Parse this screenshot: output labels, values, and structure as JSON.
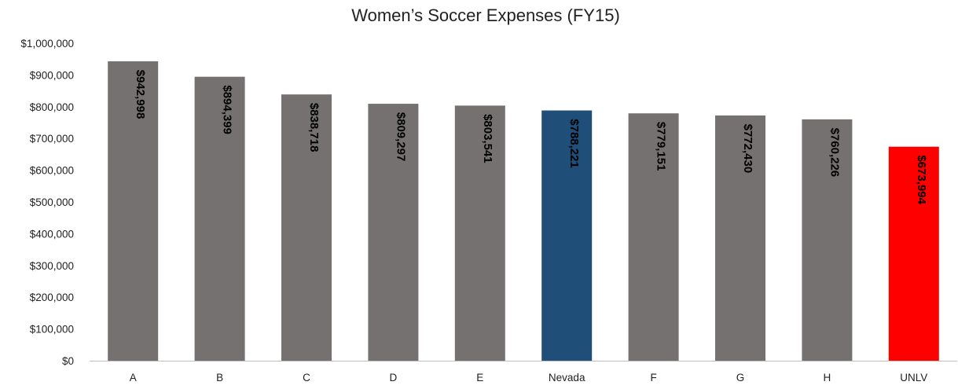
{
  "chart_data": {
    "type": "bar",
    "title": "Women’s Soccer Expenses (FY15)",
    "xlabel": "",
    "ylabel": "",
    "categories": [
      "A",
      "B",
      "C",
      "D",
      "E",
      "Nevada",
      "F",
      "G",
      "H",
      "UNLV"
    ],
    "values": [
      942998,
      894399,
      838718,
      809297,
      803541,
      788221,
      779151,
      772430,
      760226,
      673994
    ],
    "data_labels": [
      "$942,998",
      "$894,399",
      "$838,718",
      "$809,297",
      "$803,541",
      "$788,221",
      "$779,151",
      "$772,430",
      "$760,226",
      "$673,994"
    ],
    "ylim": [
      0,
      1000000
    ],
    "yticks": [
      0,
      100000,
      200000,
      300000,
      400000,
      500000,
      600000,
      700000,
      800000,
      900000,
      1000000
    ],
    "ytick_labels": [
      "$0",
      "$100,000",
      "$200,000",
      "$300,000",
      "$400,000",
      "$500,000",
      "$600,000",
      "$700,000",
      "$800,000",
      "$900,000",
      "$1,000,000"
    ],
    "grid": false,
    "legend": "none",
    "colors": {
      "default_bar": "#757171",
      "Nevada": "#1F4E79",
      "UNLV": "#FF0000",
      "data_label": "#000000",
      "axis": "#BFBFBF"
    }
  }
}
